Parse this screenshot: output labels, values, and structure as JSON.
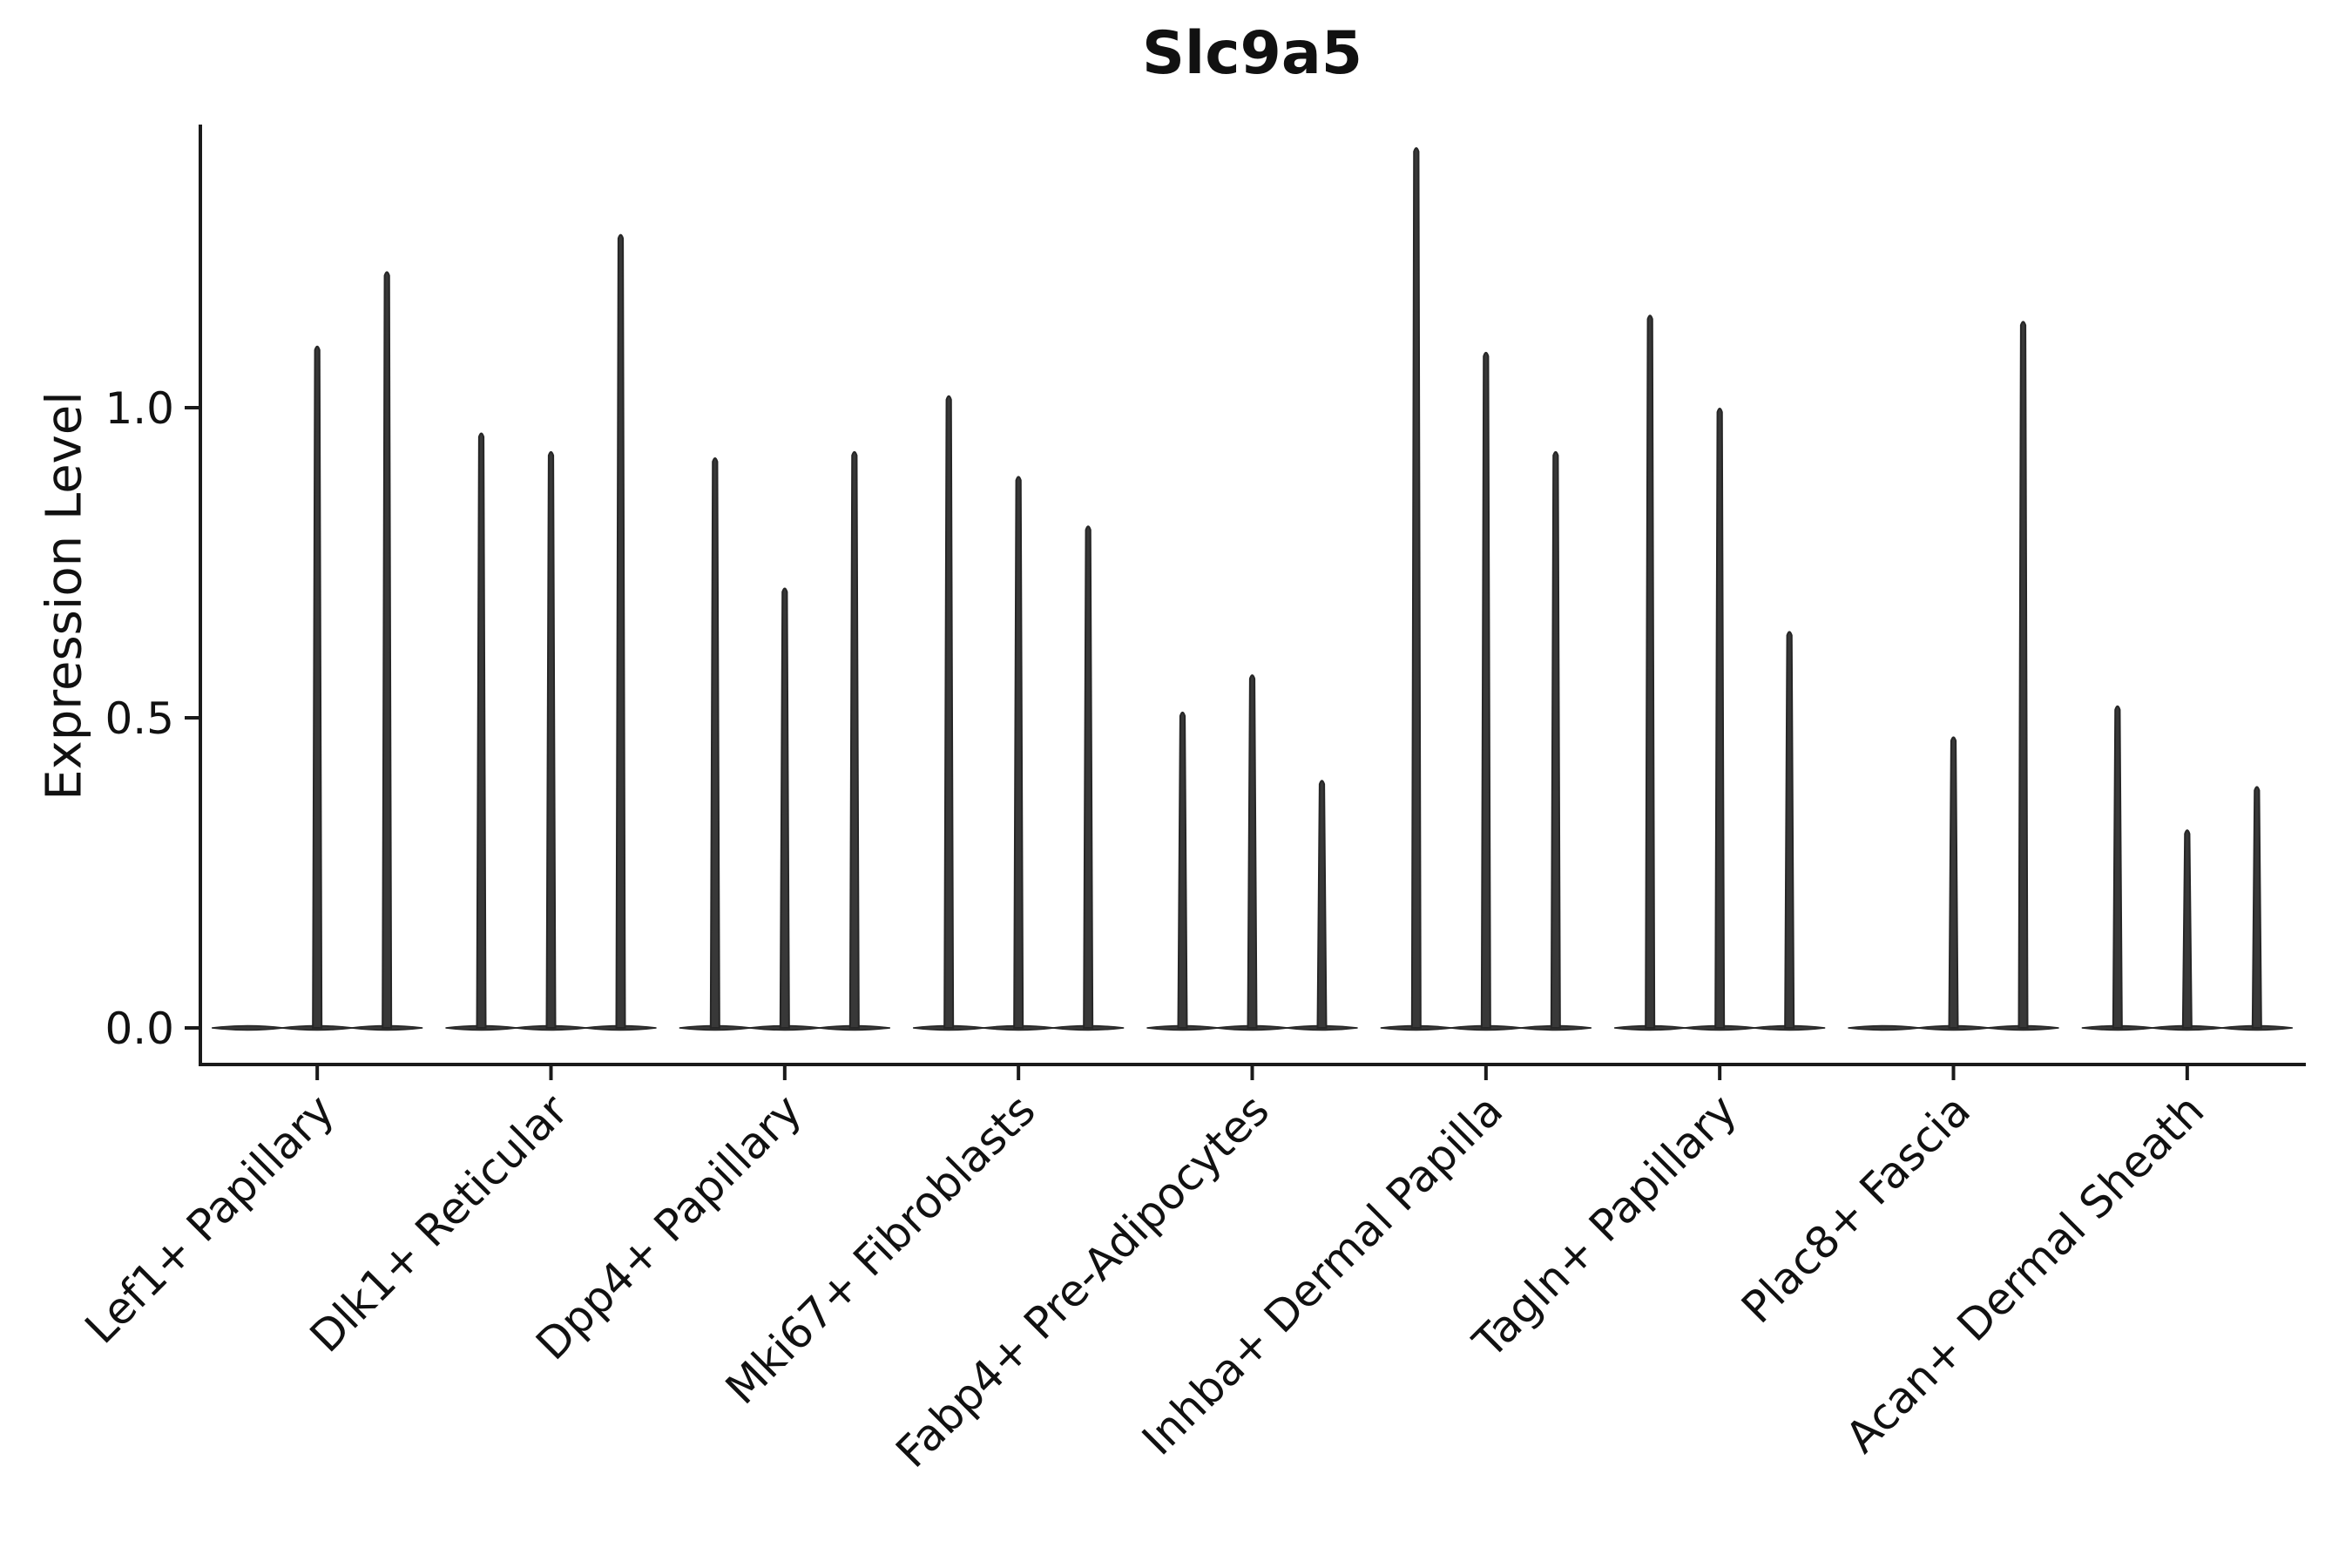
{
  "chart_data": {
    "type": "violin",
    "title": "Slc9a5",
    "ylabel": "Expression Level",
    "xlabel": "",
    "ylim": [
      -0.06,
      1.46
    ],
    "yticks": [
      0.0,
      0.5,
      1.0
    ],
    "ytick_labels": [
      "0.0",
      "0.5",
      "1.0"
    ],
    "grid": false,
    "legend": "none",
    "violins_per_group": 3,
    "note": "Needle-thin violin plot of gene expression; each group shows up to 3 near-zero-width violins with flat bases at 0, values are the spike maxima (expression level).",
    "groups": [
      {
        "label": "Lef1+ Papillary",
        "violin_maxima": [
          0.0,
          1.1,
          1.22
        ]
      },
      {
        "label": "Dlk1+ Reticular",
        "violin_maxima": [
          0.96,
          0.93,
          1.28
        ]
      },
      {
        "label": "Dpp4+ Papillary",
        "violin_maxima": [
          0.92,
          0.71,
          0.93
        ]
      },
      {
        "label": "Mki67+ Fibroblasts",
        "violin_maxima": [
          1.02,
          0.89,
          0.81
        ]
      },
      {
        "label": "Fabp4+ Pre-Adipocytes",
        "violin_maxima": [
          0.51,
          0.57,
          0.4
        ]
      },
      {
        "label": "Inhba+ Dermal Papilla",
        "violin_maxima": [
          1.42,
          1.09,
          0.93
        ]
      },
      {
        "label": "Tagln+ Papillary",
        "violin_maxima": [
          1.15,
          1.0,
          0.64
        ]
      },
      {
        "label": "Plac8+ Fascia",
        "violin_maxima": [
          0.0,
          0.47,
          1.14
        ]
      },
      {
        "label": "Acan+ Dermal Sheath",
        "violin_maxima": [
          0.52,
          0.32,
          0.39
        ]
      }
    ],
    "colors": {
      "violin_fill": "#383838",
      "violin_stroke": "#262626",
      "axis": "#1a1a1a",
      "text": "#111111",
      "background": "#ffffff"
    }
  }
}
